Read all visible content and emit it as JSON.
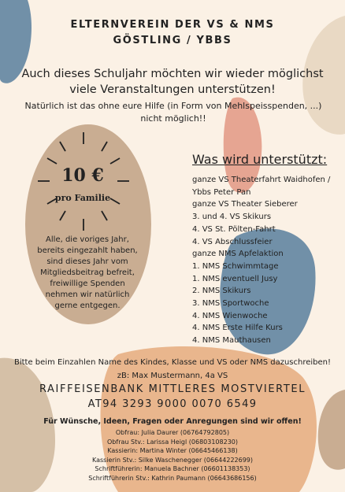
{
  "header": {
    "title_lines": [
      "ELTERNVEREIN DER VS & NMS",
      "GÖSTLING / YBBS"
    ]
  },
  "intro": "Auch dieses Schuljahr möchten wir wieder möglichst viele Veranstaltungen unterstützen!",
  "note": "Natürlich ist das ohne eure Hilfe (in Form von Mehlspeisspenden, ...) nicht möglich!!",
  "badge": {
    "price": "10 €",
    "unit": "pro Familie",
    "text": "Alle, die voriges Jahr, bereits eingezahlt haben, sind dieses Jahr vom Mitgliedsbeitrag befreit, freiwillige Spenden nehmen wir natürlich gerne entgegen."
  },
  "support": {
    "heading": "Was wird unterstützt:",
    "items": [
      "ganze VS Theaterfahrt Waidhofen / Ybbs Peter Pan",
      "ganze VS Theater Sieberer",
      "3. und 4. VS  Skikurs",
      "4. VS St. Pölten-Fahrt",
      "4. VS Abschlussfeier",
      "ganze NMS Apfelaktion",
      "1. NMS Schwimmtage",
      "1. NMS eventuell Jusy",
      "2. NMS Skikurs",
      "3. NMS Sportwoche",
      "4. NMS Wienwoche",
      "4. NMS Erste Hilfe Kurs",
      "4. NMS Mauthausen"
    ]
  },
  "footer": {
    "instruction": "Bitte beim Einzahlen Name des Kindes, Klasse und VS oder NMS dazuschreiben!",
    "example": "zB: Max Mustermann, 4a VS",
    "bank": "RAIFFEISENBANK MITTLERES MOSTVIERTEL",
    "iban": "AT94 3293 9000 0070 6549",
    "contact_call": "Für Wünsche, Ideen, Fragen oder Anregungen sind wir offen!",
    "contacts": [
      "Obfrau: Julia Daurer (06764792805)",
      "Obfrau Stv.: Larissa Heigl (06803108230)",
      "Kassierin: Martina Winter (06645466138)",
      "Kassierin Stv.: Silke Waschenegger (06644222699)",
      "Schriftführerin: Manuela Bachner (06601138353)",
      "Schriftführerin Stv.: Kathrin Paumann (06643686156)"
    ]
  }
}
